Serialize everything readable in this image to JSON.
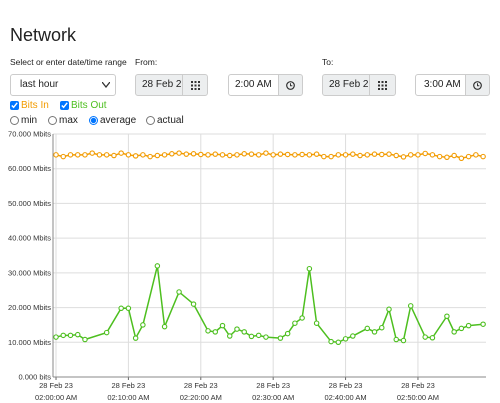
{
  "header": {
    "title": "Network"
  },
  "range": {
    "label": "Select or enter date/time range",
    "preset": "last hour",
    "from": {
      "label": "From:",
      "date": "28 Feb 2",
      "time": "2:00 AM"
    },
    "to": {
      "label": "To:",
      "date": "28 Feb 2",
      "time": "3:00 AM"
    }
  },
  "options": {
    "series_toggles": [
      {
        "label": "Bits In",
        "checked": true
      },
      {
        "label": "Bits Out",
        "checked": true
      }
    ],
    "modes": [
      {
        "label": "min",
        "checked": false
      },
      {
        "label": "max",
        "checked": false
      },
      {
        "label": "average",
        "checked": true
      },
      {
        "label": "actual",
        "checked": false
      }
    ]
  },
  "chart_data": {
    "type": "line",
    "grid": true,
    "xlim": [
      "2023-02-28T01:59:35",
      "2023-02-28T02:59:24"
    ],
    "xticks": [
      {
        "value": "2023-02-28T02:00:00",
        "label": [
          "28 Feb 23",
          "02:00:00 AM"
        ]
      },
      {
        "value": "2023-02-28T02:10:00",
        "label": [
          "28 Feb 23",
          "02:10:00 AM"
        ]
      },
      {
        "value": "2023-02-28T02:20:00",
        "label": [
          "28 Feb 23",
          "02:20:00 AM"
        ]
      },
      {
        "value": "2023-02-28T02:30:00",
        "label": [
          "28 Feb 23",
          "02:30:00 AM"
        ]
      },
      {
        "value": "2023-02-28T02:40:00",
        "label": [
          "28 Feb 23",
          "02:40:00 AM"
        ]
      },
      {
        "value": "2023-02-28T02:50:00",
        "label": [
          "28 Feb 23",
          "02:50:00 AM"
        ]
      }
    ],
    "ylim": [
      0,
      70
    ],
    "yticks": [
      {
        "value": 0,
        "label": "0.000 bits"
      },
      {
        "value": 10,
        "label": "10.000 Mbits"
      },
      {
        "value": 20,
        "label": "20.000 Mbits"
      },
      {
        "value": 30,
        "label": "30.000 Mbits"
      },
      {
        "value": 40,
        "label": "40.000 Mbits"
      },
      {
        "value": 50,
        "label": "50.000 Mbits"
      },
      {
        "value": 60,
        "label": "60.000 Mbits"
      },
      {
        "value": 70,
        "label": "70.000 Mbits"
      }
    ],
    "series": [
      {
        "name": "Bits In",
        "color": "#f29b00",
        "x": [
          "2023-02-28T02:00:00",
          "2023-02-28T02:01:00",
          "2023-02-28T02:02:00",
          "2023-02-28T02:03:00",
          "2023-02-28T02:04:00",
          "2023-02-28T02:05:00",
          "2023-02-28T02:06:00",
          "2023-02-28T02:07:00",
          "2023-02-28T02:08:00",
          "2023-02-28T02:09:00",
          "2023-02-28T02:10:00",
          "2023-02-28T02:11:00",
          "2023-02-28T02:12:00",
          "2023-02-28T02:13:00",
          "2023-02-28T02:14:00",
          "2023-02-28T02:15:00",
          "2023-02-28T02:16:00",
          "2023-02-28T02:17:00",
          "2023-02-28T02:18:00",
          "2023-02-28T02:19:00",
          "2023-02-28T02:20:00",
          "2023-02-28T02:21:00",
          "2023-02-28T02:22:00",
          "2023-02-28T02:23:00",
          "2023-02-28T02:24:00",
          "2023-02-28T02:25:00",
          "2023-02-28T02:26:00",
          "2023-02-28T02:27:00",
          "2023-02-28T02:28:00",
          "2023-02-28T02:29:00",
          "2023-02-28T02:30:00",
          "2023-02-28T02:31:00",
          "2023-02-28T02:32:00",
          "2023-02-28T02:33:00",
          "2023-02-28T02:34:00",
          "2023-02-28T02:35:00",
          "2023-02-28T02:36:00",
          "2023-02-28T02:37:00",
          "2023-02-28T02:38:00",
          "2023-02-28T02:39:00",
          "2023-02-28T02:40:00",
          "2023-02-28T02:41:00",
          "2023-02-28T02:42:00",
          "2023-02-28T02:43:00",
          "2023-02-28T02:44:00",
          "2023-02-28T02:45:00",
          "2023-02-28T02:46:00",
          "2023-02-28T02:47:00",
          "2023-02-28T02:48:00",
          "2023-02-28T02:49:00",
          "2023-02-28T02:50:00",
          "2023-02-28T02:51:00",
          "2023-02-28T02:52:00",
          "2023-02-28T02:53:00",
          "2023-02-28T02:54:00",
          "2023-02-28T02:55:00",
          "2023-02-28T02:56:00",
          "2023-02-28T02:57:00",
          "2023-02-28T02:58:00",
          "2023-02-28T02:59:00"
        ],
        "values": [
          64,
          63.5,
          64,
          64,
          64,
          64.5,
          64,
          64,
          63.8,
          64.5,
          64,
          63.7,
          64,
          63.5,
          63.8,
          64,
          64.3,
          64.5,
          64.2,
          64.3,
          64.1,
          64,
          64.2,
          64,
          63.8,
          64,
          64.3,
          64.2,
          64,
          64.5,
          64,
          64.2,
          64.1,
          64,
          64.1,
          64,
          64.2,
          63.5,
          63.5,
          64,
          64,
          64.2,
          63.8,
          64,
          64.2,
          64.1,
          64.2,
          63.8,
          63.4,
          64,
          64,
          64.4,
          64,
          63.5,
          63.3,
          63.8,
          63,
          63.5,
          64,
          63.5
        ]
      },
      {
        "name": "Bits Out",
        "color": "#4dbf1f",
        "x": [
          "2023-02-28T02:00:00",
          "2023-02-28T02:01:00",
          "2023-02-28T02:02:00",
          "2023-02-28T02:03:00",
          "2023-02-28T02:04:00",
          "2023-02-28T02:07:00",
          "2023-02-28T02:09:00",
          "2023-02-28T02:10:00",
          "2023-02-28T02:11:00",
          "2023-02-28T02:12:00",
          "2023-02-28T02:14:00",
          "2023-02-28T02:15:00",
          "2023-02-28T02:17:00",
          "2023-02-28T02:19:00",
          "2023-02-28T02:21:00",
          "2023-02-28T02:22:00",
          "2023-02-28T02:23:00",
          "2023-02-28T02:24:00",
          "2023-02-28T02:25:00",
          "2023-02-28T02:26:00",
          "2023-02-28T02:27:00",
          "2023-02-28T02:28:00",
          "2023-02-28T02:29:00",
          "2023-02-28T02:31:00",
          "2023-02-28T02:32:00",
          "2023-02-28T02:33:00",
          "2023-02-28T02:34:00",
          "2023-02-28T02:35:00",
          "2023-02-28T02:36:00",
          "2023-02-28T02:38:00",
          "2023-02-28T02:39:00",
          "2023-02-28T02:40:00",
          "2023-02-28T02:41:00",
          "2023-02-28T02:43:00",
          "2023-02-28T02:44:00",
          "2023-02-28T02:45:00",
          "2023-02-28T02:46:00",
          "2023-02-28T02:47:00",
          "2023-02-28T02:48:00",
          "2023-02-28T02:49:00",
          "2023-02-28T02:51:00",
          "2023-02-28T02:52:00",
          "2023-02-28T02:54:00",
          "2023-02-28T02:55:00",
          "2023-02-28T02:56:00",
          "2023-02-28T02:57:00",
          "2023-02-28T02:59:00"
        ],
        "values": [
          11.5,
          12,
          12,
          12.2,
          10.8,
          12.8,
          19.8,
          19.8,
          11.2,
          15,
          32,
          14.5,
          24.5,
          21,
          13.3,
          13,
          14.8,
          11.8,
          13.8,
          13,
          11.7,
          12,
          11.5,
          11.2,
          12.5,
          15.5,
          17,
          31.2,
          15.5,
          10.2,
          10,
          11,
          11.8,
          14,
          13,
          14.2,
          19.5,
          10.8,
          10.5,
          20.5,
          11.5,
          11.3,
          17.5,
          13,
          14,
          14.8,
          15.2
        ]
      }
    ]
  }
}
